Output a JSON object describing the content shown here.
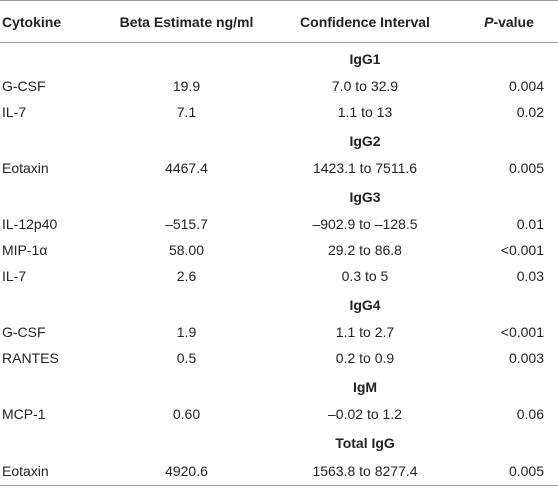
{
  "header": {
    "col1": "Cytokine",
    "col2": "Beta Estimate ng/ml",
    "col3": "Confidence Interval",
    "col4_italic": "P",
    "col4_rest": "-value"
  },
  "groups": [
    {
      "title": "IgG1",
      "rows": [
        {
          "cytokine": "G-CSF",
          "beta": "19.9",
          "ci": "7.0 to 32.9",
          "p": "0.004"
        },
        {
          "cytokine": "IL-7",
          "beta": "7.1",
          "ci": "1.1 to 13",
          "p": "0.02"
        }
      ]
    },
    {
      "title": "IgG2",
      "rows": [
        {
          "cytokine": "Eotaxin",
          "beta": "4467.4",
          "ci": "1423.1 to 7511.6",
          "p": "0.005"
        }
      ]
    },
    {
      "title": "IgG3",
      "rows": [
        {
          "cytokine": "IL-12p40",
          "beta": "–515.7",
          "ci": "–902.9 to –128.5",
          "p": "0.01"
        },
        {
          "cytokine": "MIP-1α",
          "beta": "58.00",
          "ci": "29.2 to 86.8",
          "p": "<0.001"
        },
        {
          "cytokine": "IL-7",
          "beta": "2.6",
          "ci": "0.3 to 5",
          "p": "0.03"
        }
      ]
    },
    {
      "title": "IgG4",
      "rows": [
        {
          "cytokine": "G-CSF",
          "beta": "1.9",
          "ci": "1.1 to 2.7",
          "p": "<0.001"
        },
        {
          "cytokine": "RANTES",
          "beta": "0.5",
          "ci": "0.2 to 0.9",
          "p": "0.003"
        }
      ]
    },
    {
      "title": "IgM",
      "rows": [
        {
          "cytokine": "MCP-1",
          "beta": "0.60",
          "ci": "–0.02 to 1.2",
          "p": "0.06"
        }
      ]
    },
    {
      "title": "Total IgG",
      "rows": [
        {
          "cytokine": "Eotaxin",
          "beta": "4920.6",
          "ci": "1563.8 to 8277.4",
          "p": "0.005"
        }
      ]
    }
  ]
}
